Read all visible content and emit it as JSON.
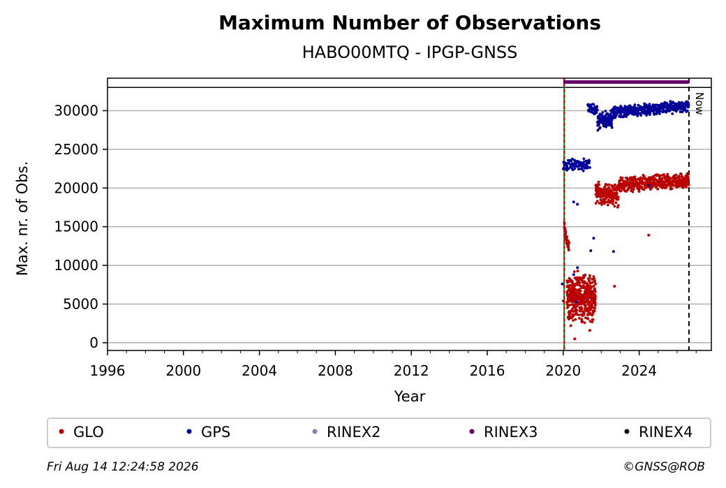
{
  "chart_data": {
    "type": "scatter",
    "title": "Maximum Number of Observations",
    "subtitle": "HABO00MTQ - IPGP-GNSS",
    "xlabel": "Year",
    "ylabel": "Max. nr. of Obs.",
    "xlim": [
      1996,
      2027.8
    ],
    "ylim": [
      -1000,
      34200
    ],
    "x_ticks": [
      "1996",
      "2000",
      "2004",
      "2008",
      "2012",
      "2016",
      "2020",
      "2024"
    ],
    "y_ticks": [
      "0",
      "5000",
      "10000",
      "15000",
      "20000",
      "25000",
      "30000"
    ],
    "grid": "horizontal",
    "now_label": "Now",
    "now_year": 2026.62,
    "start_line_year": 2020.05,
    "top_reference_line": 33000,
    "series": [
      {
        "name": "GLO",
        "color": "#bb0000",
        "segments": [
          {
            "x0": 2020.05,
            "x1": 2020.3,
            "y0": 15000,
            "y1": 12000,
            "jitter": 1200,
            "n": 40
          },
          {
            "x0": 2020.2,
            "x1": 2021.7,
            "y0": 6000,
            "y1": 5800,
            "jitter": 3500,
            "n": 420
          },
          {
            "x0": 2021.7,
            "x1": 2022.9,
            "y0": 19400,
            "y1": 19000,
            "jitter": 1600,
            "n": 170
          },
          {
            "x0": 2022.9,
            "x1": 2026.6,
            "y0": 20400,
            "y1": 21000,
            "jitter": 1100,
            "n": 420
          }
        ],
        "outliers": [
          [
            2020.0,
            5400
          ],
          [
            2020.4,
            2200
          ],
          [
            2020.6,
            500
          ],
          [
            2021.4,
            1600
          ],
          [
            2022.7,
            7300
          ],
          [
            2024.5,
            13900
          ]
        ]
      },
      {
        "name": "GPS",
        "color": "#000099",
        "segments": [
          {
            "x0": 2020.0,
            "x1": 2021.4,
            "y0": 23000,
            "y1": 23000,
            "jitter": 900,
            "n": 90
          },
          {
            "x0": 2021.3,
            "x1": 2021.8,
            "y0": 30500,
            "y1": 30000,
            "jitter": 700,
            "n": 40
          },
          {
            "x0": 2021.8,
            "x1": 2022.6,
            "y0": 28600,
            "y1": 29000,
            "jitter": 1300,
            "n": 120
          },
          {
            "x0": 2022.6,
            "x1": 2026.6,
            "y0": 29800,
            "y1": 30600,
            "jitter": 900,
            "n": 420
          }
        ],
        "outliers": [
          [
            2019.95,
            7600
          ],
          [
            2020.55,
            18200
          ],
          [
            2020.75,
            17900
          ],
          [
            2020.55,
            8800
          ],
          [
            2020.75,
            9700
          ],
          [
            2020.65,
            5300
          ],
          [
            2021.45,
            11900
          ],
          [
            2021.6,
            13500
          ],
          [
            2022.65,
            11800
          ],
          [
            2024.5,
            20300
          ]
        ]
      },
      {
        "name": "RINEX2",
        "color": "#8080c0"
      },
      {
        "name": "RINEX3",
        "color": "#660066",
        "bar": {
          "x0": 2020.0,
          "x1": 2026.62,
          "y": 33700
        }
      },
      {
        "name": "RINEX4",
        "color": "#1a0015"
      }
    ]
  },
  "footer": {
    "timestamp": "Fri Aug 14 12:24:58 2026",
    "credit": "©GNSS@ROB"
  }
}
